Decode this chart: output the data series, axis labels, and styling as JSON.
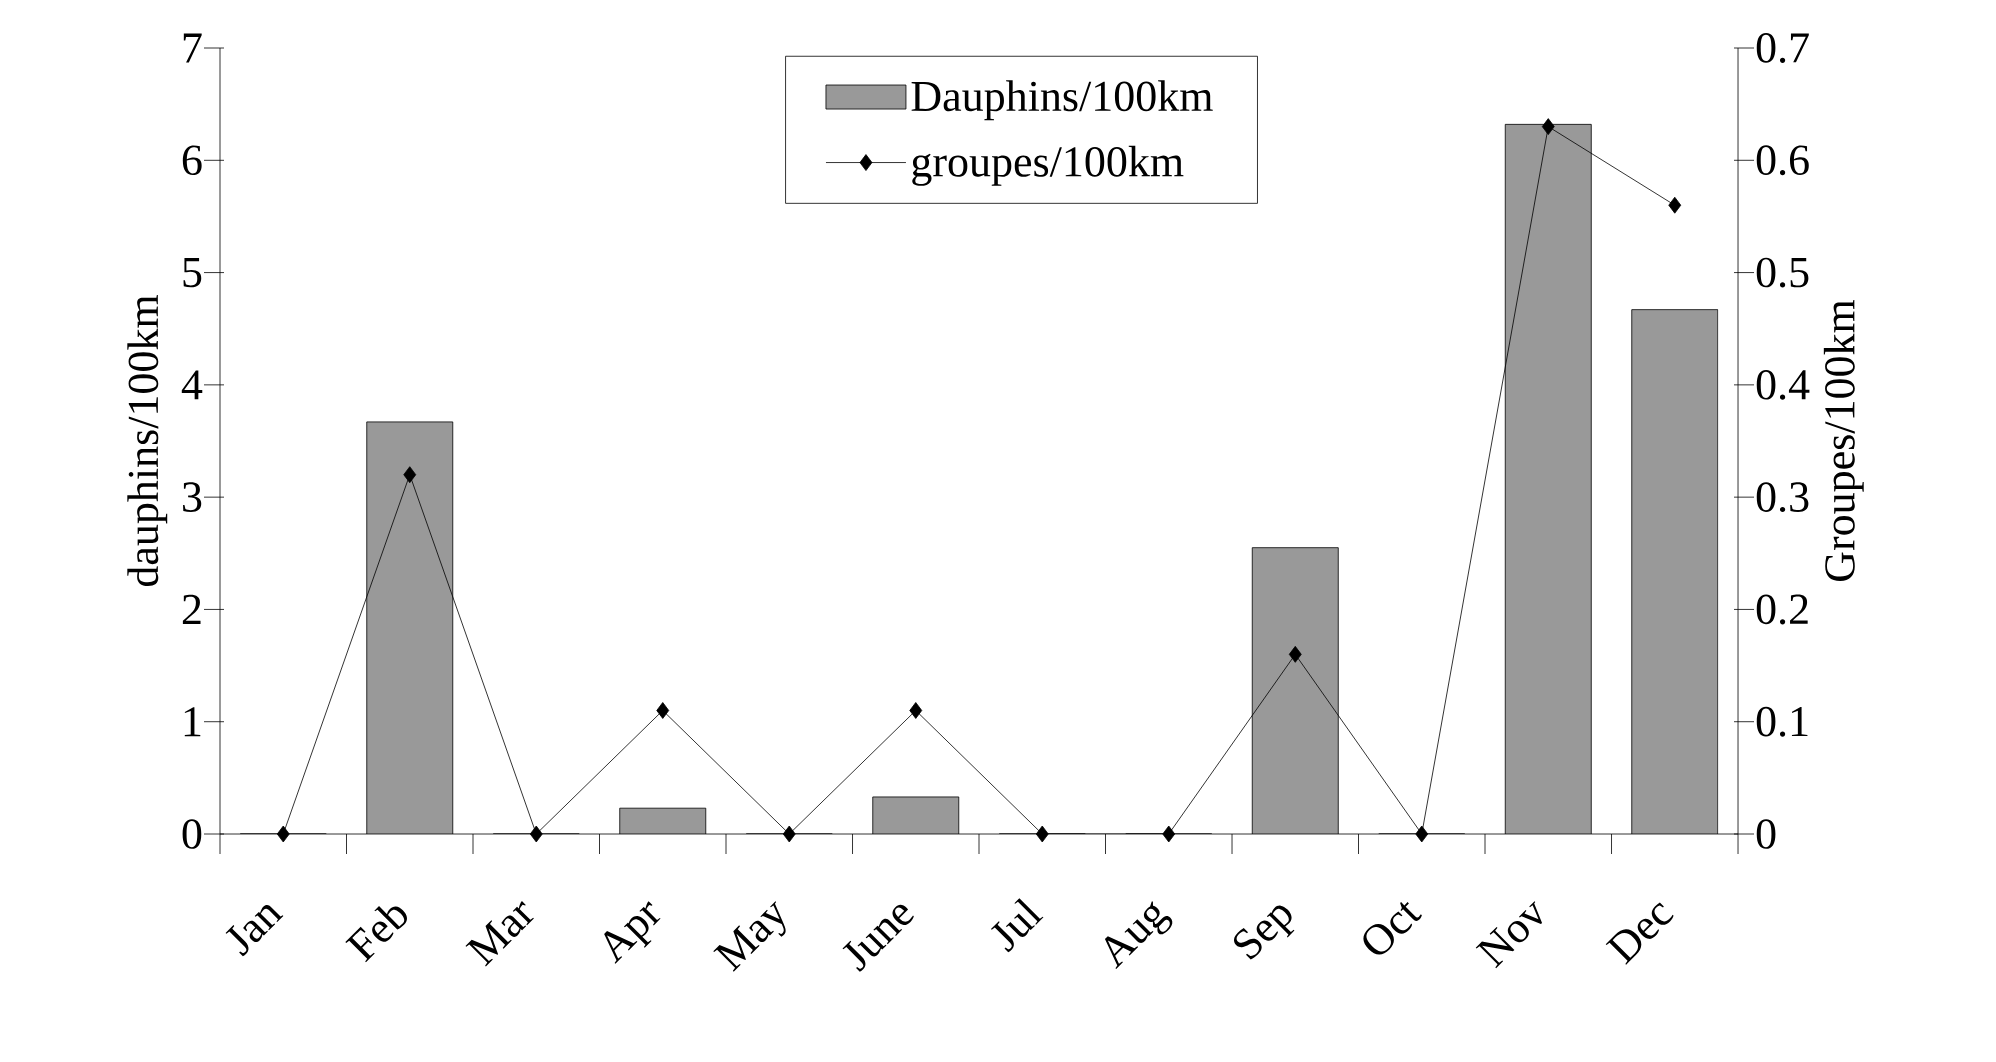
{
  "chart_data": {
    "type": "bar",
    "categories": [
      "Jan",
      "Feb",
      "Mar",
      "Apr",
      "May",
      "June",
      "Jul",
      "Aug",
      "Sep",
      "Oct",
      "Nov",
      "Dec"
    ],
    "series": [
      {
        "name": "Dauphins/100km",
        "color": "#999999",
        "values": [
          0,
          3.67,
          0,
          0.23,
          0,
          0.33,
          0,
          0,
          2.55,
          0,
          6.32,
          4.67
        ]
      },
      {
        "name": "groupes/100km",
        "type": "line",
        "axis": "y2",
        "color": "#000000",
        "values": [
          0,
          0.32,
          0,
          0.11,
          0,
          0.11,
          0,
          0,
          0.16,
          0,
          0.63,
          0.56
        ]
      }
    ],
    "ylabel": "dauphins/100km",
    "y2label": "Groupes/100km",
    "ylim": [
      0,
      7
    ],
    "yticks": [
      0,
      1,
      2,
      3,
      4,
      5,
      6,
      7
    ],
    "y2lim": [
      0,
      0.7
    ],
    "y2ticks": [
      0,
      0.1,
      0.2,
      0.3,
      0.4,
      0.5,
      0.6,
      0.7
    ],
    "legend": "top",
    "marker": "diamond",
    "line_style": "solid",
    "grid": false
  }
}
